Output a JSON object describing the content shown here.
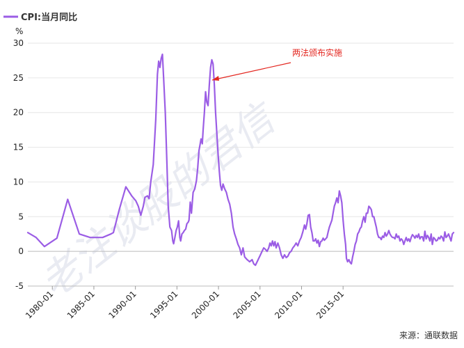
{
  "legend": {
    "label": "CPI:当月同比",
    "color": "#9b5de5"
  },
  "unit": "%",
  "annotation": {
    "text": "两法颁布实施",
    "color": "#e3261f"
  },
  "source": "来源：通联数据",
  "watermark": "老注谈股的君信",
  "chart_data": {
    "type": "line",
    "title": "",
    "xlabel": "",
    "ylabel": "%",
    "ylim": [
      -5,
      30
    ],
    "yticks": [
      -5,
      0,
      5,
      10,
      15,
      20,
      25,
      30
    ],
    "xtick_labels": [
      "1980-01",
      "1985-01",
      "1990-01",
      "1995-01",
      "2000-01",
      "2005-01",
      "2010-01",
      "2015-01"
    ],
    "grid": "horizontal",
    "legend_position": "top-left",
    "series": [
      {
        "name": "CPI:当月同比",
        "color": "#9b5de5",
        "points": [
          [
            1978.0,
            2.7
          ],
          [
            1979.0,
            2.0
          ],
          [
            1980.0,
            0.7
          ],
          [
            1981.0,
            1.5
          ],
          [
            1981.5,
            1.9
          ],
          [
            1982.8,
            7.5
          ],
          [
            1984.2,
            2.5
          ],
          [
            1985.5,
            2.0
          ],
          [
            1986.0,
            2.0
          ],
          [
            1987.0,
            2.0
          ],
          [
            1988.0,
            2.5
          ],
          [
            1988.3,
            2.7
          ],
          [
            1989.0,
            6.0
          ],
          [
            1989.8,
            9.3
          ],
          [
            1990.5,
            8.0
          ],
          [
            1991.0,
            7.3
          ],
          [
            1991.3,
            6.5
          ],
          [
            1991.6,
            5.2
          ],
          [
            1991.9,
            6.5
          ],
          [
            1992.1,
            7.8
          ],
          [
            1992.4,
            8.0
          ],
          [
            1992.6,
            7.6
          ],
          [
            1992.8,
            10.0
          ],
          [
            1993.1,
            12.5
          ],
          [
            1993.4,
            19.0
          ],
          [
            1993.6,
            25.5
          ],
          [
            1993.75,
            27.4
          ],
          [
            1993.9,
            26.5
          ],
          [
            1994.05,
            27.8
          ],
          [
            1994.2,
            28.4
          ],
          [
            1994.35,
            25.0
          ],
          [
            1994.55,
            20.0
          ],
          [
            1994.75,
            12.5
          ],
          [
            1994.9,
            6.5
          ],
          [
            1995.1,
            3.5
          ],
          [
            1995.3,
            3.0
          ],
          [
            1995.45,
            1.5
          ],
          [
            1995.55,
            1.1
          ],
          [
            1995.7,
            2.0
          ],
          [
            1995.85,
            3.0
          ],
          [
            1996.0,
            3.5
          ],
          [
            1996.15,
            4.4
          ],
          [
            1996.3,
            2.0
          ],
          [
            1996.4,
            1.5
          ],
          [
            1996.55,
            2.5
          ],
          [
            1996.7,
            2.7
          ],
          [
            1996.85,
            3.0
          ],
          [
            1997.0,
            3.2
          ],
          [
            1997.15,
            4.0
          ],
          [
            1997.3,
            4.2
          ],
          [
            1997.4,
            4.5
          ],
          [
            1997.55,
            7.1
          ],
          [
            1997.7,
            5.5
          ],
          [
            1997.9,
            8.5
          ],
          [
            1998.1,
            9.0
          ],
          [
            1998.3,
            10.2
          ],
          [
            1998.45,
            12.0
          ],
          [
            1998.6,
            14.5
          ],
          [
            1998.75,
            15.5
          ],
          [
            1998.85,
            16.2
          ],
          [
            1999.0,
            15.5
          ],
          [
            1999.1,
            17.5
          ],
          [
            1999.25,
            20.0
          ],
          [
            1999.4,
            23.0
          ],
          [
            1999.55,
            21.5
          ],
          [
            1999.7,
            21.0
          ],
          [
            1999.85,
            24.0
          ],
          [
            2000.0,
            26.5
          ],
          [
            2000.15,
            27.6
          ],
          [
            2000.3,
            27.0
          ],
          [
            2000.45,
            24.0
          ],
          [
            2000.6,
            20.0
          ],
          [
            2000.75,
            17.0
          ],
          [
            2000.9,
            14.0
          ],
          [
            2001.05,
            11.5
          ],
          [
            2001.2,
            9.5
          ],
          [
            2001.35,
            8.8
          ],
          [
            2001.5,
            9.7
          ],
          [
            2001.7,
            9.0
          ],
          [
            2001.9,
            8.5
          ],
          [
            2002.1,
            7.5
          ],
          [
            2002.3,
            6.8
          ],
          [
            2002.5,
            5.5
          ],
          [
            2002.7,
            3.5
          ],
          [
            2002.9,
            2.5
          ],
          [
            2003.1,
            1.8
          ],
          [
            2003.3,
            1.0
          ],
          [
            2003.5,
            0.5
          ],
          [
            2003.7,
            -0.5
          ],
          [
            2003.9,
            0.5
          ],
          [
            2004.1,
            -0.8
          ],
          [
            2004.4,
            -1.2
          ],
          [
            2004.7,
            -1.5
          ],
          [
            2005.0,
            -1.2
          ],
          [
            2005.2,
            -1.8
          ],
          [
            2005.4,
            -2.0
          ],
          [
            2005.6,
            -1.5
          ],
          [
            2005.8,
            -1.0
          ],
          [
            2006.0,
            -0.5
          ],
          [
            2006.2,
            0.0
          ],
          [
            2006.4,
            0.5
          ],
          [
            2006.6,
            0.3
          ],
          [
            2006.8,
            0.0
          ],
          [
            2007.0,
            0.5
          ],
          [
            2007.15,
            1.2
          ],
          [
            2007.3,
            0.8
          ],
          [
            2007.45,
            1.5
          ],
          [
            2007.6,
            0.8
          ],
          [
            2007.75,
            1.4
          ],
          [
            2007.9,
            0.5
          ],
          [
            2008.1,
            1.2
          ],
          [
            2008.3,
            0.5
          ],
          [
            2008.5,
            -0.5
          ],
          [
            2008.7,
            -1.0
          ],
          [
            2008.9,
            -0.5
          ],
          [
            2009.1,
            -0.9
          ],
          [
            2009.3,
            -0.7
          ],
          [
            2009.5,
            -0.2
          ],
          [
            2009.7,
            0.0
          ],
          [
            2009.9,
            0.5
          ],
          [
            2010.1,
            0.8
          ],
          [
            2010.3,
            1.2
          ],
          [
            2010.5,
            0.8
          ],
          [
            2010.7,
            1.5
          ],
          [
            2010.9,
            2.0
          ],
          [
            2011.1,
            2.8
          ],
          [
            2011.3,
            3.8
          ],
          [
            2011.45,
            3.2
          ],
          [
            2011.6,
            4.0
          ],
          [
            2011.75,
            5.2
          ],
          [
            2011.9,
            5.3
          ],
          [
            2012.05,
            3.5
          ],
          [
            2012.2,
            2.7
          ],
          [
            2012.35,
            1.5
          ],
          [
            2012.5,
            1.5
          ],
          [
            2012.65,
            1.8
          ],
          [
            2012.8,
            1.2
          ],
          [
            2012.95,
            1.6
          ],
          [
            2013.1,
            0.7
          ],
          [
            2013.25,
            1.4
          ],
          [
            2013.4,
            1.5
          ],
          [
            2013.55,
            1.9
          ],
          [
            2013.7,
            1.6
          ],
          [
            2013.85,
            1.8
          ],
          [
            2014.0,
            2.0
          ],
          [
            2014.15,
            2.8
          ],
          [
            2014.3,
            3.5
          ],
          [
            2014.45,
            4.0
          ],
          [
            2014.6,
            4.5
          ],
          [
            2014.75,
            5.5
          ],
          [
            2014.9,
            6.5
          ],
          [
            2015.05,
            7.0
          ],
          [
            2015.2,
            7.7
          ],
          [
            2015.35,
            7.0
          ],
          [
            2015.5,
            8.7
          ],
          [
            2015.65,
            8.0
          ],
          [
            2015.8,
            7.0
          ],
          [
            2015.95,
            4.5
          ],
          [
            2016.1,
            2.5
          ],
          [
            2016.25,
            1.0
          ],
          [
            2016.35,
            -1.0
          ],
          [
            2016.5,
            -1.5
          ],
          [
            2016.65,
            -1.2
          ],
          [
            2016.8,
            -1.6
          ],
          [
            2016.95,
            -1.8
          ],
          [
            2017.1,
            -0.8
          ],
          [
            2017.25,
            0.0
          ],
          [
            2017.4,
            1.0
          ],
          [
            2017.55,
            1.5
          ],
          [
            2017.7,
            2.5
          ],
          [
            2017.85,
            2.8
          ],
          [
            2018.0,
            3.3
          ],
          [
            2018.15,
            3.5
          ],
          [
            2018.3,
            4.4
          ],
          [
            2018.45,
            5.0
          ],
          [
            2018.6,
            4.2
          ],
          [
            2018.75,
            5.5
          ],
          [
            2018.9,
            5.5
          ],
          [
            2019.05,
            6.5
          ],
          [
            2019.2,
            6.3
          ],
          [
            2019.35,
            6.0
          ],
          [
            2019.5,
            5.0
          ],
          [
            2019.65,
            5.0
          ],
          [
            2019.8,
            4.2
          ],
          [
            2019.95,
            3.5
          ],
          [
            2020.1,
            2.5
          ],
          [
            2020.25,
            2.0
          ],
          [
            2020.4,
            2.0
          ],
          [
            2020.55,
            1.7
          ],
          [
            2020.7,
            2.2
          ],
          [
            2020.85,
            2.0
          ],
          [
            2021.0,
            2.7
          ],
          [
            2021.15,
            2.2
          ],
          [
            2021.3,
            2.5
          ],
          [
            2021.45,
            3.0
          ],
          [
            2021.6,
            2.5
          ],
          [
            2021.75,
            2.2
          ],
          [
            2021.9,
            2.0
          ],
          [
            2022.05,
            2.0
          ],
          [
            2022.2,
            1.8
          ],
          [
            2022.35,
            2.5
          ],
          [
            2022.5,
            2.0
          ],
          [
            2022.65,
            2.2
          ],
          [
            2022.8,
            1.5
          ],
          [
            2022.95,
            1.8
          ],
          [
            2023.1,
            1.6
          ],
          [
            2023.25,
            1.0
          ],
          [
            2023.4,
            1.5
          ],
          [
            2023.55,
            2.0
          ],
          [
            2023.7,
            1.5
          ],
          [
            2023.85,
            1.8
          ],
          [
            2024.0,
            1.4
          ],
          [
            2024.15,
            2.0
          ],
          [
            2024.3,
            2.4
          ],
          [
            2024.45,
            2.2
          ],
          [
            2024.6,
            1.9
          ],
          [
            2024.75,
            2.3
          ],
          [
            2024.9,
            2.0
          ],
          [
            2025.05,
            2.5
          ],
          [
            2025.2,
            1.8
          ],
          [
            2025.35,
            2.1
          ],
          [
            2025.5,
            2.1
          ],
          [
            2025.65,
            1.5
          ],
          [
            2025.8,
            2.9
          ],
          [
            2025.95,
            1.8
          ],
          [
            2026.1,
            2.3
          ],
          [
            2026.25,
            2.0
          ],
          [
            2026.4,
            1.5
          ],
          [
            2026.55,
            2.5
          ],
          [
            2026.7,
            1.0
          ],
          [
            2026.85,
            2.0
          ],
          [
            2027.0,
            1.8
          ],
          [
            2027.15,
            1.5
          ],
          [
            2027.3,
            1.6
          ],
          [
            2027.45,
            2.0
          ],
          [
            2027.6,
            1.8
          ],
          [
            2027.75,
            2.2
          ],
          [
            2027.9,
            2.0
          ],
          [
            2028.05,
            1.5
          ],
          [
            2028.2,
            2.8
          ],
          [
            2028.35,
            2.0
          ],
          [
            2028.5,
            2.2
          ],
          [
            2028.65,
            2.5
          ],
          [
            2028.8,
            2.0
          ],
          [
            2028.95,
            1.5
          ],
          [
            2029.1,
            2.5
          ],
          [
            2029.25,
            2.7
          ]
        ]
      }
    ]
  }
}
